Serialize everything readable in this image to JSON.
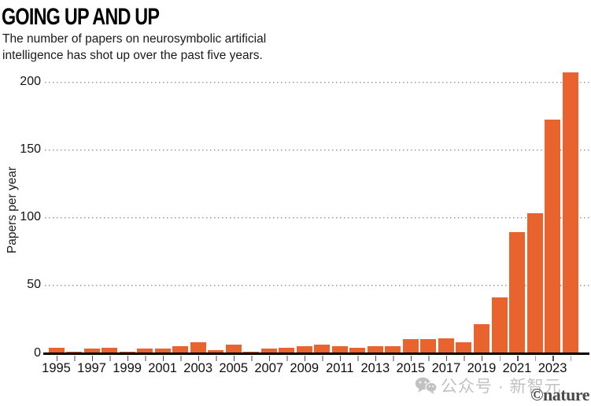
{
  "header": {
    "title": "GOING UP AND UP",
    "subtitle_lines": [
      "The number of papers on neurosymbolic artificial",
      "intelligence has shot up over the past five years."
    ]
  },
  "chart_data": {
    "type": "bar",
    "title": "GOING UP AND UP",
    "subtitle": "The number of papers on neurosymbolic artificial intelligence has shot up over the past five years.",
    "xlabel": "",
    "ylabel": "Papers per year",
    "ylim": [
      0,
      215
    ],
    "yticks": [
      0,
      50,
      100,
      150,
      200
    ],
    "grid": "horizontal-dotted",
    "legend": "none",
    "bar_color": "#E8632D",
    "categories": [
      1995,
      1996,
      1997,
      1998,
      1999,
      2000,
      2001,
      2002,
      2003,
      2004,
      2005,
      2006,
      2007,
      2008,
      2009,
      2010,
      2011,
      2012,
      2013,
      2014,
      2015,
      2016,
      2017,
      2018,
      2019,
      2020,
      2021,
      2022,
      2023,
      2024
    ],
    "values": [
      4,
      1,
      3,
      4,
      1,
      3,
      3,
      5,
      8,
      2,
      6,
      1,
      3,
      4,
      5,
      6,
      5,
      4,
      5,
      5,
      10,
      10,
      11,
      8,
      21,
      41,
      89,
      103,
      172,
      207
    ],
    "xtick_labels": [
      "1995",
      "1997",
      "1999",
      "2001",
      "2003",
      "2005",
      "2007",
      "2009",
      "2011",
      "2013",
      "2015",
      "2017",
      "2019",
      "2021",
      "2023"
    ]
  },
  "watermark": {
    "icon": "wechat-icon",
    "text": "公众号 · 新智元",
    "color": "#c2c2c2"
  },
  "credit": {
    "text": "©nature"
  }
}
